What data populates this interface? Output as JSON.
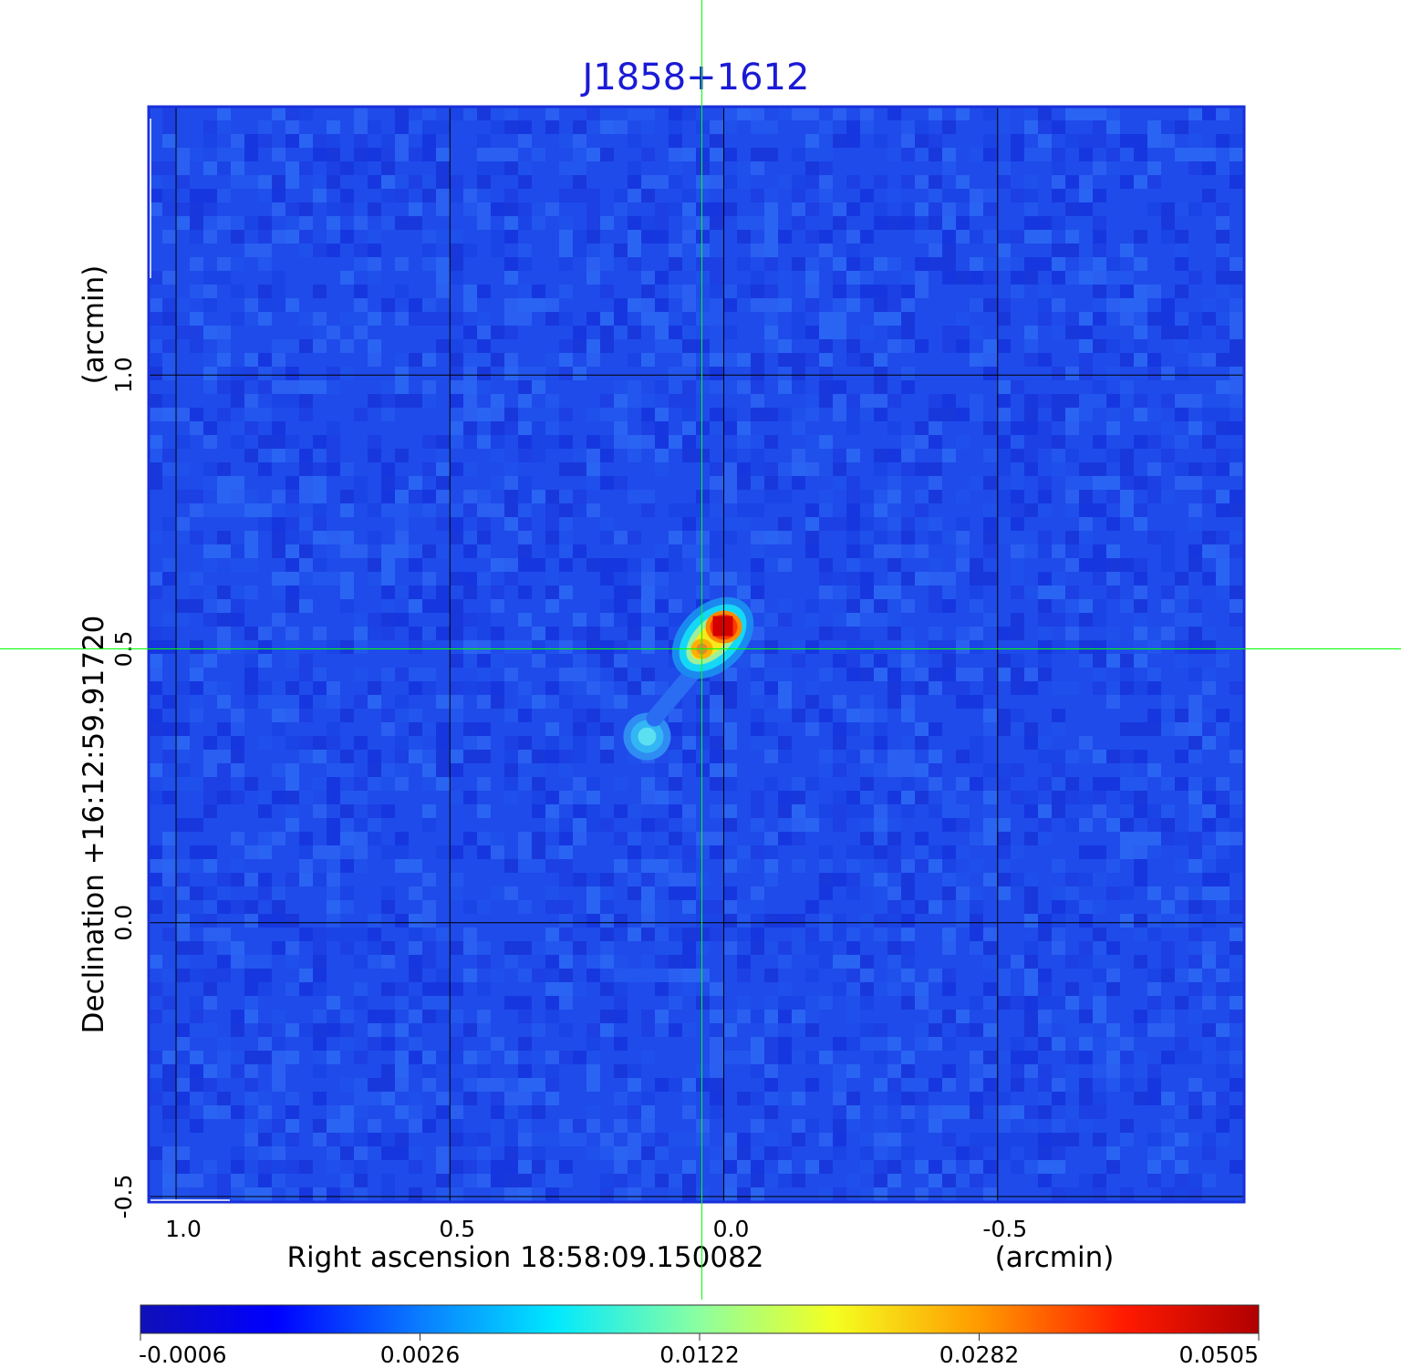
{
  "chart_data": {
    "type": "heatmap",
    "title": "J1858+1612",
    "xlabel": "Right ascension  18:58:09.150082",
    "xunit": "(arcmin)",
    "ylabel": "Declination  +16:12:59.91720",
    "yunit": "(arcmin)",
    "xlim": [
      1.05,
      -0.95
    ],
    "ylim": [
      -0.51,
      1.49
    ],
    "x_ticks": [
      {
        "value": 1.0,
        "label": "1.0"
      },
      {
        "value": 0.5,
        "label": "0.5"
      },
      {
        "value": 0.0,
        "label": "0.0"
      },
      {
        "value": -0.5,
        "label": "-0.5"
      }
    ],
    "y_ticks": [
      {
        "value": 1.0,
        "label": "1.0"
      },
      {
        "value": 0.5,
        "label": "0.5"
      },
      {
        "value": 0.0,
        "label": "0.0"
      },
      {
        "value": -0.5,
        "label": "-0.5"
      }
    ],
    "grid": true,
    "crosshair": {
      "x": 0.04,
      "y": 0.5,
      "color": "#00ff00"
    },
    "sources": [
      {
        "x": 0.0,
        "y": 0.54,
        "peak": 0.0505
      },
      {
        "x": 0.04,
        "y": 0.5,
        "peak": 0.024
      },
      {
        "x": 0.14,
        "y": 0.34,
        "peak": 0.006
      }
    ],
    "colorbar": {
      "colormap": "jet",
      "ticks": [
        "-0.0006",
        "0.0026",
        "0.0122",
        "0.0282",
        "0.0505"
      ],
      "min": -0.0006,
      "max": 0.0505
    },
    "colors": {
      "title": "#1a1ad6",
      "background_map": "#1f4bea",
      "grid": "#000000",
      "crosshair": "#00ff00"
    }
  }
}
